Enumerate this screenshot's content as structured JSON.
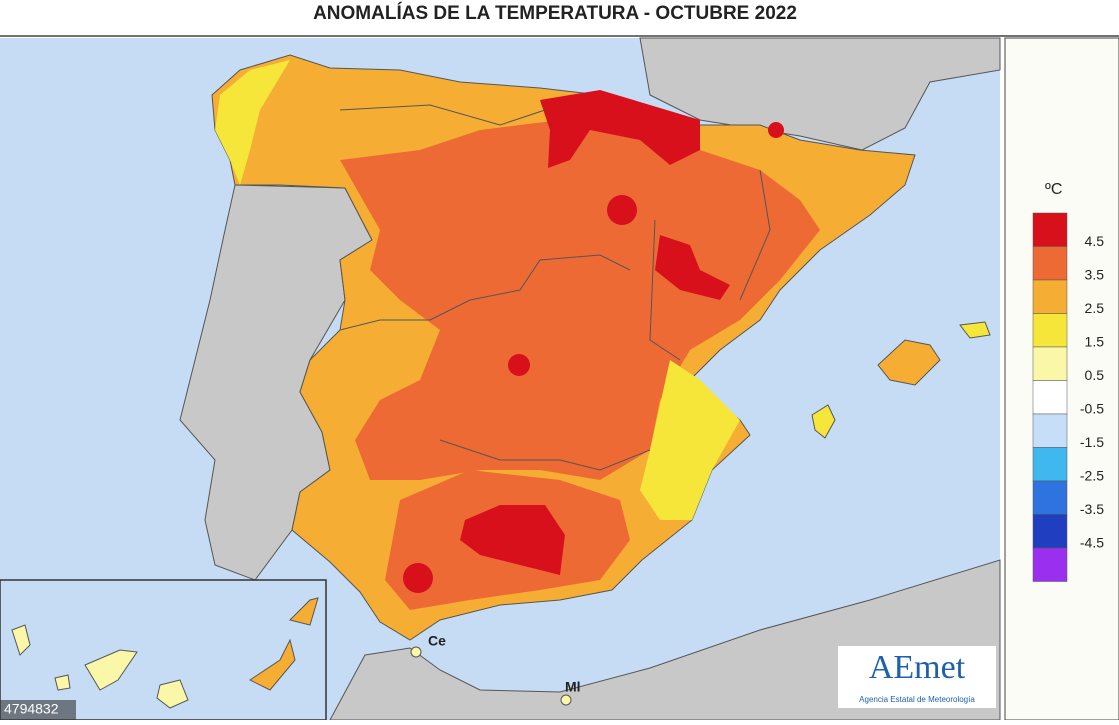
{
  "header": {
    "title": "ANOMALÍAS DE LA TEMPERATURA - OCTUBRE 2022"
  },
  "legend": {
    "unit": "ºC",
    "colors": [
      "#d7101c",
      "#ee6a35",
      "#f5ae33",
      "#f7e63a",
      "#fbf7a8",
      "#ffffff",
      "#c6def7",
      "#3fb8ef",
      "#2f73e0",
      "#1f3fc0",
      "#9b2ff0"
    ],
    "labels": [
      "4.5",
      "3.5",
      "2.5",
      "1.5",
      "0.5",
      "-0.5",
      "-1.5",
      "-2.5",
      "-3.5",
      "-4.5"
    ]
  },
  "places": {
    "ceuta": "Ce",
    "melilla": "Ml"
  },
  "logo": {
    "name": "AEmet",
    "subtitle": "Agencia Estatal de Meteorología"
  },
  "watermark": "4794832"
}
